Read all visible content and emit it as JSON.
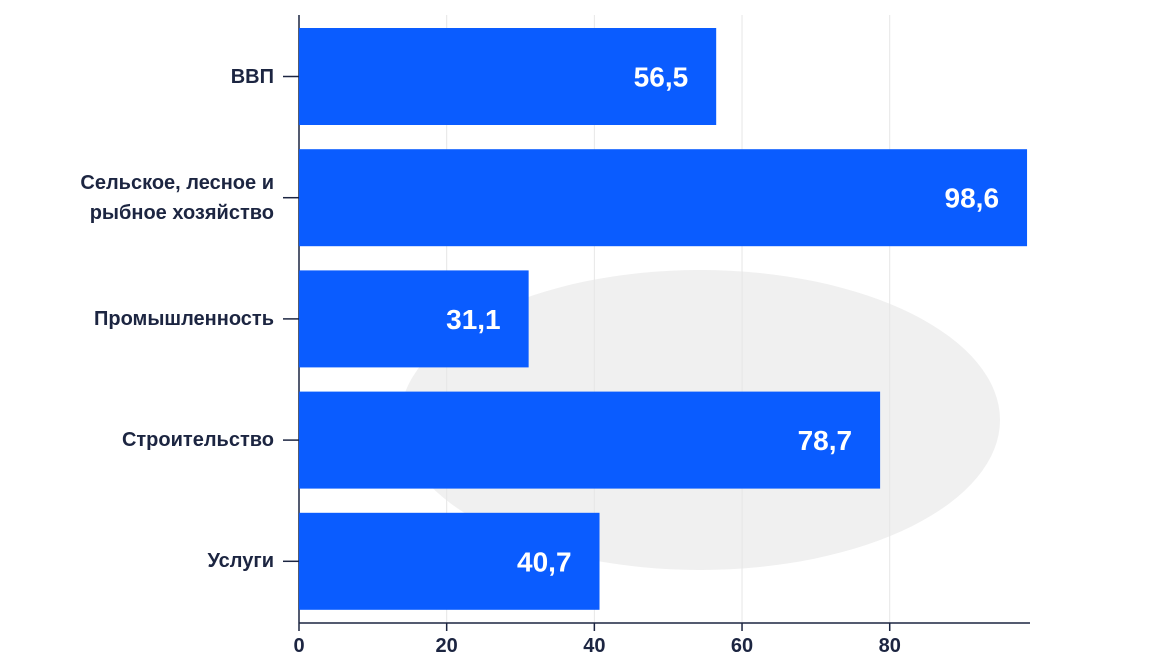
{
  "chart_data": {
    "type": "barh",
    "categories": [
      "ВВП",
      "Сельское, лесное и\nрыбное хозяйство",
      "Промышленность",
      "Строительство",
      "Услуги"
    ],
    "values": [
      56.5,
      98.6,
      31.1,
      78.7,
      40.7
    ],
    "value_labels": [
      "56,5",
      "98,6",
      "31,1",
      "78,7",
      "40,7"
    ],
    "color": "#0a5cff",
    "xlim": [
      0,
      99
    ],
    "xticks": [
      0,
      20,
      40,
      60,
      80
    ],
    "grid": true
  }
}
